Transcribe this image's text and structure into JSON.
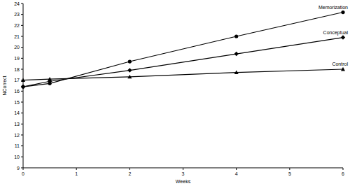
{
  "chart_data": {
    "type": "line",
    "x_label": "Weeks",
    "y_label": "NCorrect",
    "x": [
      0,
      0.5,
      2,
      4,
      6
    ],
    "series": [
      {
        "name": "Memorization",
        "color": "#000000",
        "marker": "circle",
        "values": [
          16.4,
          16.7,
          18.7,
          21.0,
          23.2
        ]
      },
      {
        "name": "Conceptual",
        "color": "#000000",
        "marker": "diamond",
        "values": [
          16.4,
          16.9,
          17.9,
          19.4,
          20.9
        ]
      },
      {
        "name": "Control",
        "color": "#000000",
        "marker": "triangle",
        "values": [
          17.0,
          17.1,
          17.3,
          17.7,
          18.0
        ]
      }
    ],
    "xlim": [
      0,
      6
    ],
    "ylim": [
      9,
      24
    ],
    "xticks": [
      0,
      1,
      2,
      3,
      4,
      5,
      6
    ],
    "yticks": [
      9,
      10,
      11,
      12,
      13,
      14,
      15,
      16,
      17,
      18,
      19,
      20,
      21,
      22,
      23,
      24
    ],
    "grid": false
  }
}
